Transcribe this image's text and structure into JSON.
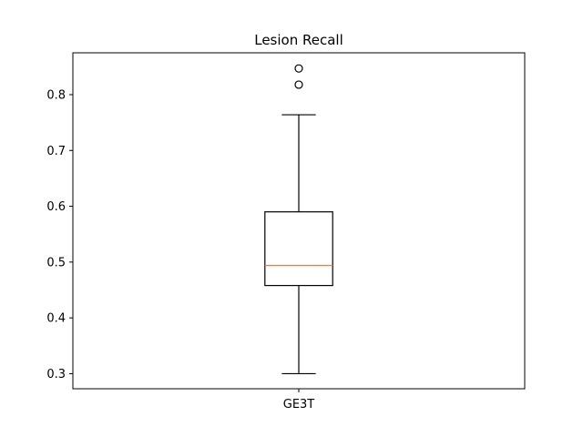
{
  "chart_data": {
    "type": "box",
    "title": "Lesion Recall",
    "categories": [
      "GE3T"
    ],
    "boxes": [
      {
        "name": "GE3T",
        "whisker_low": 0.3,
        "q1": 0.458,
        "median": 0.494,
        "q3": 0.59,
        "whisker_high": 0.764,
        "outliers": [
          0.818,
          0.847
        ]
      }
    ],
    "y_ticks": [
      0.3,
      0.4,
      0.5,
      0.6,
      0.7,
      0.8
    ],
    "ylim": [
      0.273,
      0.875
    ],
    "grid": false,
    "colors": {
      "box": "#000000",
      "median": "#ff7f0e",
      "whisker": "#000000",
      "outlier": "#000000"
    }
  }
}
